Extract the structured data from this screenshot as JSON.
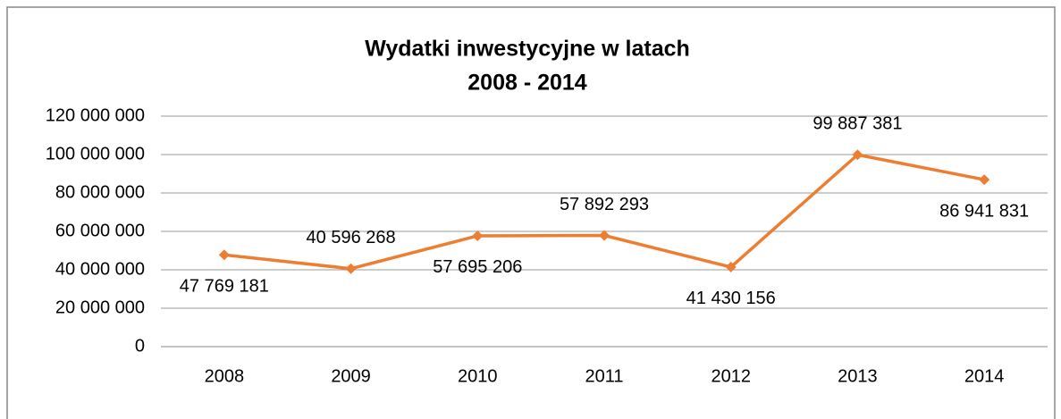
{
  "chart_data": {
    "type": "line",
    "title": [
      "Wydatki inwestycyjne w latach",
      "2008 - 2014"
    ],
    "categories": [
      "2008",
      "2009",
      "2010",
      "2011",
      "2012",
      "2013",
      "2014"
    ],
    "series": [
      {
        "name": "Wydatki inwestycyjne",
        "color": "#ed7d31",
        "values": [
          47769181,
          40596268,
          57695206,
          57892293,
          41430156,
          99887381,
          86941831
        ],
        "value_labels": [
          "47 769 181",
          "40 596 268",
          "57 695 206",
          "57 892 293",
          "41 430 156",
          "99 887 381",
          "86 941 831"
        ]
      }
    ],
    "ylim": [
      0,
      120000000
    ],
    "yticks": [
      0,
      {
        "value": 20000000,
        "label": "20 000 000"
      },
      {
        "value": 40000000,
        "label": "40 000 000"
      },
      {
        "value": 60000000,
        "label": "60 000 000"
      },
      {
        "value": 80000000,
        "label": "80 000 000"
      },
      {
        "value": 100000000,
        "label": "100 000 000"
      },
      {
        "value": 120000000,
        "label": "120 000 000"
      }
    ],
    "grid": true,
    "legend": false
  }
}
